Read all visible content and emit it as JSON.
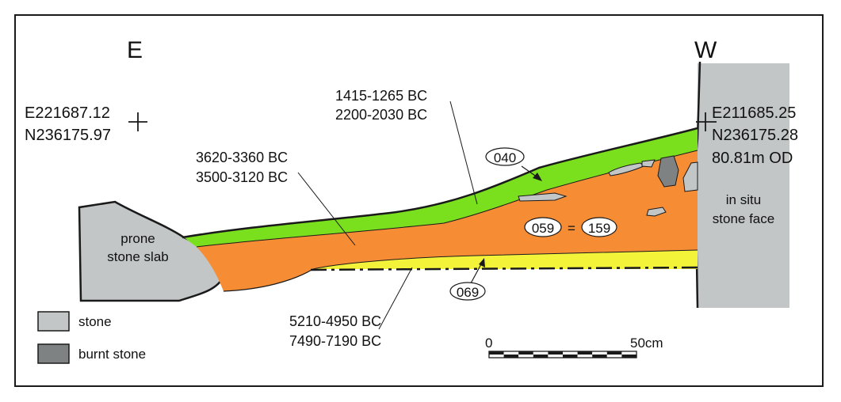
{
  "orientation": {
    "left": "E",
    "right": "W"
  },
  "coordinates": {
    "east_point": {
      "easting": "E221687.12",
      "northing": "N236175.97"
    },
    "west_point": {
      "easting": "E211685.25",
      "northing": "N236175.28",
      "height": "80.81m OD"
    }
  },
  "stones": {
    "left": {
      "line1": "prone",
      "line2": "stone slab"
    },
    "right": {
      "line1": "in situ",
      "line2": "stone face"
    }
  },
  "dates": {
    "upper": {
      "line1": "1415-1265 BC",
      "line2": "2200-2030 BC"
    },
    "middle": {
      "line1": "3620-3360 BC",
      "line2": "3500-3120 BC"
    },
    "lower": {
      "line1": "5210-4950 BC",
      "line2": "7490-7190 BC"
    }
  },
  "contexts": {
    "green": "040",
    "orange_a": "059",
    "equals": "=",
    "orange_b": "159",
    "yellow": "069"
  },
  "legend": [
    {
      "label": "stone",
      "color": "#c3c6c6"
    },
    {
      "label": "burnt stone",
      "color": "#7f8282"
    }
  ],
  "scale": {
    "start": "0",
    "end": "50cm"
  },
  "colors": {
    "green": "#7ae01e",
    "orange": "#f68d35",
    "yellow": "#f3f33a",
    "stone": "#c3c6c6",
    "burnt_stone": "#7f8282"
  }
}
